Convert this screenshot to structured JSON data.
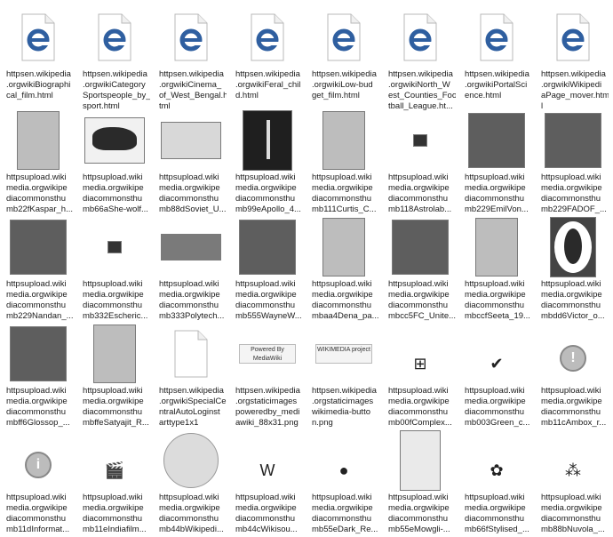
{
  "files": [
    {
      "kind": "ie",
      "label": "httpsen.wikipedia\n.orgwikiBiographi\ncal_film.html"
    },
    {
      "kind": "ie",
      "label": "httpsen.wikipedia\n.orgwikiCategory\nSportspeople_by_\nsport.html"
    },
    {
      "kind": "ie",
      "label": "httpsen.wikipedia\n.orgwikiCinema_\nof_West_Bengal.h\ntml"
    },
    {
      "kind": "ie",
      "label": "httpsen.wikipedia\n.orgwikiFeral_chil\nd.html"
    },
    {
      "kind": "ie",
      "label": "httpsen.wikipedia\n.orgwikiLow-bud\nget_film.html"
    },
    {
      "kind": "ie",
      "label": "httpsen.wikipedia\n.orgwikiNorth_W\nest_Counties_Foo\ntball_League.ht..."
    },
    {
      "kind": "ie",
      "label": "httpsen.wikipedia\n.orgwikiPortalSci\nence.html"
    },
    {
      "kind": "ie",
      "label": "httpsen.wikipedia\n.orgwikiWikipedi\naPage_mover.htm\nl"
    },
    {
      "kind": "photo",
      "tone": "light",
      "label": "httpsupload.wiki\nmedia.orgwikipe\ndiacommonsthu\nmb22fKaspar_h..."
    },
    {
      "kind": "photo",
      "tone": "wolf",
      "label": "httpsupload.wiki\nmedia.orgwikipe\ndiacommonsthu\nmb66aShe-wolf..."
    },
    {
      "kind": "photo",
      "tone": "stamp",
      "label": "httpsupload.wiki\nmedia.orgwikipe\ndiacommonsthu\nmb88dSoviet_U..."
    },
    {
      "kind": "photo",
      "tone": "dark",
      "label": "httpsupload.wiki\nmedia.orgwikipe\ndiacommonsthu\nmb99eApollo_4..."
    },
    {
      "kind": "photo",
      "tone": "light",
      "label": "httpsupload.wiki\nmedia.orgwikipe\ndiacommonsthu\nmb111Curtis_C..."
    },
    {
      "kind": "photo",
      "tone": "tiny",
      "label": "httpsupload.wiki\nmedia.orgwikipe\ndiacommonsthu\nmb118Astrolab..."
    },
    {
      "kind": "photo",
      "tone": "mid",
      "label": "httpsupload.wiki\nmedia.orgwikipe\ndiacommonsthu\nmb229EmilVon..."
    },
    {
      "kind": "photo",
      "tone": "mid",
      "label": "httpsupload.wiki\nmedia.orgwikipe\ndiacommonsthu\nmb229FADOF_..."
    },
    {
      "kind": "photo",
      "tone": "mid",
      "label": "httpsupload.wiki\nmedia.orgwikipe\ndiacommonsthu\nmb229Nandan_..."
    },
    {
      "kind": "photo",
      "tone": "tiny",
      "label": "httpsupload.wiki\nmedia.orgwikipe\ndiacommonsthu\nmb332Escheric..."
    },
    {
      "kind": "photo",
      "tone": "wide",
      "label": "httpsupload.wiki\nmedia.orgwikipe\ndiacommonsthu\nmb333Polytech..."
    },
    {
      "kind": "photo",
      "tone": "mid",
      "label": "httpsupload.wiki\nmedia.orgwikipe\ndiacommonsthu\nmb555WayneW..."
    },
    {
      "kind": "photo",
      "tone": "light",
      "label": "httpsupload.wiki\nmedia.orgwikipe\ndiacommonsthu\nmbaa4Dena_pa..."
    },
    {
      "kind": "photo",
      "tone": "mid",
      "label": "httpsupload.wiki\nmedia.orgwikipe\ndiacommonsthu\nmbcc5FC_Unite..."
    },
    {
      "kind": "photo",
      "tone": "light",
      "label": "httpsupload.wiki\nmedia.orgwikipe\ndiacommonsthu\nmbccfSeeta_19..."
    },
    {
      "kind": "photo",
      "tone": "oval",
      "label": "httpsupload.wiki\nmedia.orgwikipe\ndiacommonsthu\nmbdd6Victor_o..."
    },
    {
      "kind": "photo",
      "tone": "mid",
      "label": "httpsupload.wiki\nmedia.orgwikipe\ndiacommonsthu\nmbff6Glossop_..."
    },
    {
      "kind": "photo",
      "tone": "light",
      "label": "httpsupload.wiki\nmedia.orgwikipe\ndiacommonsthu\nmbffeSatyajit_R..."
    },
    {
      "kind": "blank",
      "label": "httpsen.wikipedia\n.orgwikiSpecialCe\nntralAutoLoginst\narttype1x1"
    },
    {
      "kind": "badge",
      "badge": "Powered By MediaWiki",
      "label": "httpsen.wikipedia\n.orgstaticimages\npoweredby_medi\nawiki_88x31.png"
    },
    {
      "kind": "badge",
      "badge": "WIKIMEDIA project",
      "label": "httpsen.wikipedia\n.orgstaticimages\nwikimedia-butto\nn.png"
    },
    {
      "kind": "small",
      "glyph": "⊞",
      "label": "httpsupload.wiki\nmedia.orgwikipe\ndiacommonsthu\nmb00fComplex..."
    },
    {
      "kind": "small",
      "glyph": "✔",
      "label": "httpsupload.wiki\nmedia.orgwikipe\ndiacommonsthu\nmb003Green_c..."
    },
    {
      "kind": "circle",
      "glyph": "!",
      "label": "httpsupload.wiki\nmedia.orgwikipe\ndiacommonsthu\nmb11cAmbox_r..."
    },
    {
      "kind": "circle",
      "glyph": "i",
      "label": "httpsupload.wiki\nmedia.orgwikipe\ndiacommonsthu\nmb11dInformat..."
    },
    {
      "kind": "small",
      "glyph": "🎬",
      "label": "httpsupload.wiki\nmedia.orgwikipe\ndiacommonsthu\nmb11eIndiafilm..."
    },
    {
      "kind": "globe",
      "label": "httpsupload.wiki\nmedia.orgwikipe\ndiacommonsthu\nmb44bWikipedi..."
    },
    {
      "kind": "small",
      "glyph": "W",
      "label": "httpsupload.wiki\nmedia.orgwikipe\ndiacommonsthu\nmb44cWikisou..."
    },
    {
      "kind": "small",
      "glyph": "●",
      "label": "httpsupload.wiki\nmedia.orgwikipe\ndiacommonsthu\nmb55eDark_Re..."
    },
    {
      "kind": "photo",
      "tone": "drawing",
      "label": "httpsupload.wiki\nmedia.orgwikipe\ndiacommonsthu\nmb55eMowgli-..."
    },
    {
      "kind": "small",
      "glyph": "✿",
      "label": "httpsupload.wiki\nmedia.orgwikipe\ndiacommonsthu\nmb66fStylised_..."
    },
    {
      "kind": "small",
      "glyph": "⁂",
      "label": "httpsupload.wiki\nmedia.orgwikipe\ndiacommonsthu\nmb88bNuvola_..."
    }
  ]
}
